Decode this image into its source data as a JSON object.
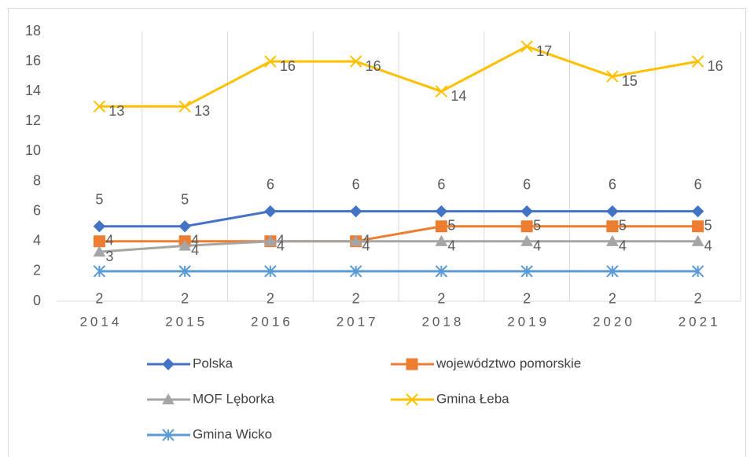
{
  "chart_data": {
    "type": "line",
    "categories": [
      "2014",
      "2015",
      "2016",
      "2017",
      "2018",
      "2019",
      "2020",
      "2021"
    ],
    "series": [
      {
        "name": "Polska",
        "color": "#4472c4",
        "marker": "diamond",
        "values": [
          5,
          5,
          6,
          6,
          6,
          6,
          6,
          6
        ]
      },
      {
        "name": "województwo pomorskie",
        "color": "#ed7d31",
        "marker": "square",
        "values": [
          4,
          4,
          4,
          4,
          5,
          5,
          5,
          5
        ]
      },
      {
        "name": "MOF Lęborka",
        "color": "#a5a5a5",
        "marker": "triangle",
        "values": [
          3.3,
          3.7,
          4,
          4,
          4,
          4,
          4,
          4
        ],
        "value_labels": [
          "3",
          "4",
          "4",
          "4",
          "4",
          "4",
          "4",
          "4"
        ]
      },
      {
        "name": "Gmina Łeba",
        "color": "#ffc000",
        "marker": "x",
        "values": [
          13,
          13,
          16,
          16,
          14,
          17,
          15,
          16
        ]
      },
      {
        "name": "Gmina Wicko",
        "color": "#5b9bd5",
        "marker": "star",
        "values": [
          2,
          2,
          2,
          2,
          2,
          2,
          2,
          2
        ]
      }
    ],
    "ylim": [
      0,
      18
    ],
    "yticks": [
      0,
      2,
      4,
      6,
      8,
      10,
      12,
      14,
      16,
      18
    ],
    "grid": true,
    "legend": "bottom"
  }
}
